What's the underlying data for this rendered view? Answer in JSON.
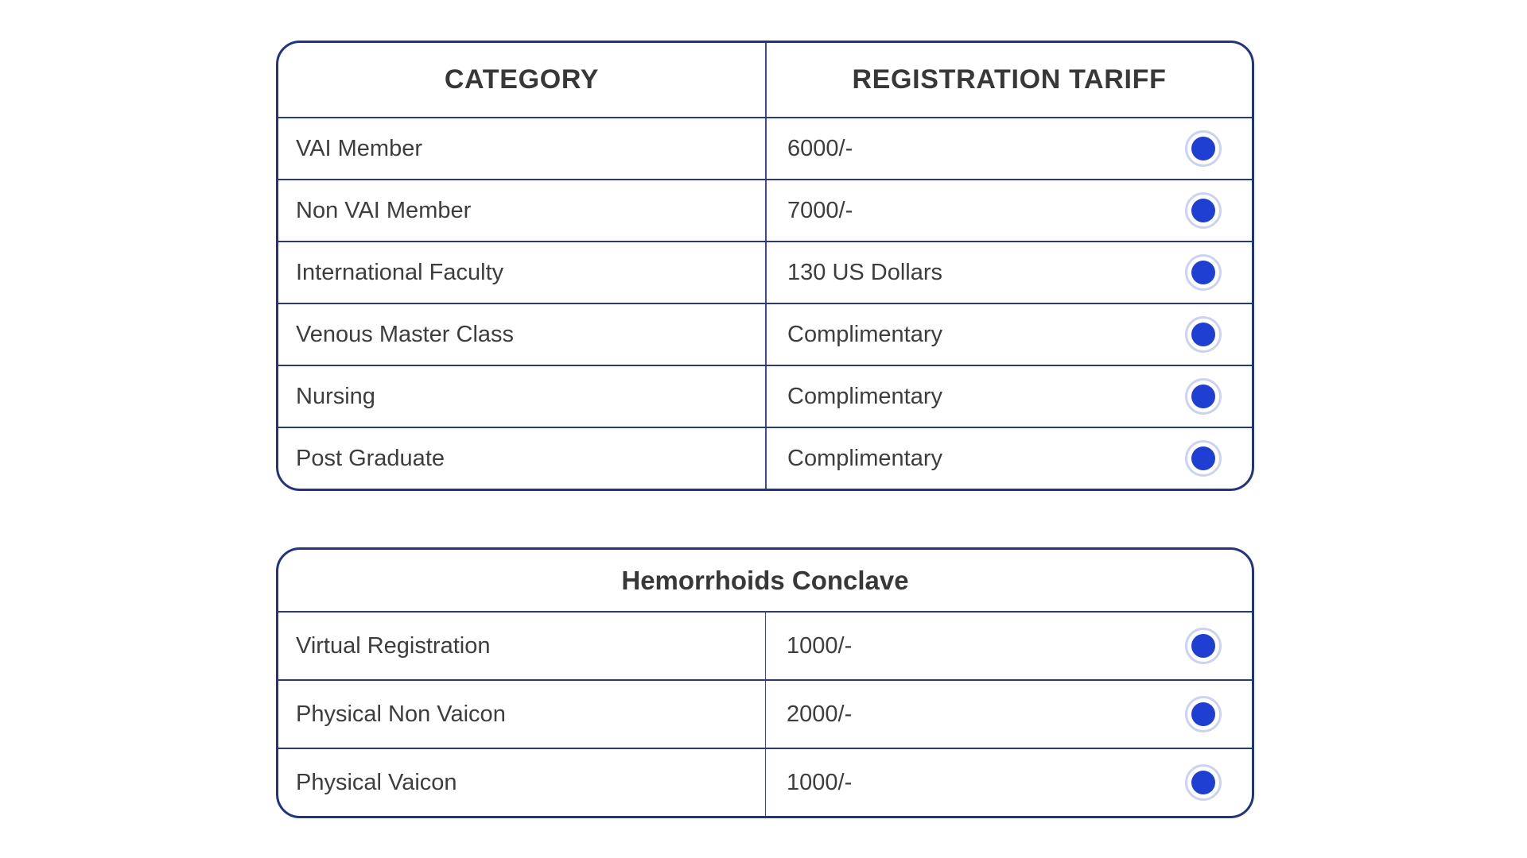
{
  "colors": {
    "border_navy": "#21357e",
    "divider_navy": "#2a397f",
    "column_divider": "#3d4c90",
    "radio_blue": "#1e3fd2",
    "radio_ring": "#ccd3ef",
    "text_dark": "#3d3d3d",
    "header_text": "#383838",
    "page_bg": "#ffffff"
  },
  "registration_table": {
    "headers": {
      "category": "CATEGORY",
      "tariff": "REGISTRATION TARIFF"
    },
    "rows": [
      {
        "category": "VAI Member",
        "tariff": "6000/-"
      },
      {
        "category": "Non VAI Member",
        "tariff": "7000/-"
      },
      {
        "category": "International Faculty",
        "tariff": "130 US Dollars"
      },
      {
        "category": "Venous Master Class",
        "tariff": "Complimentary"
      },
      {
        "category": "Nursing",
        "tariff": "Complimentary"
      },
      {
        "category": "Post Graduate",
        "tariff": "Complimentary"
      }
    ]
  },
  "conclave_table": {
    "title": "Hemorrhoids Conclave",
    "rows": [
      {
        "category": "Virtual Registration",
        "tariff": "1000/-"
      },
      {
        "category": "Physical Non Vaicon",
        "tariff": "2000/-"
      },
      {
        "category": "Physical Vaicon",
        "tariff": "1000/-"
      }
    ]
  }
}
